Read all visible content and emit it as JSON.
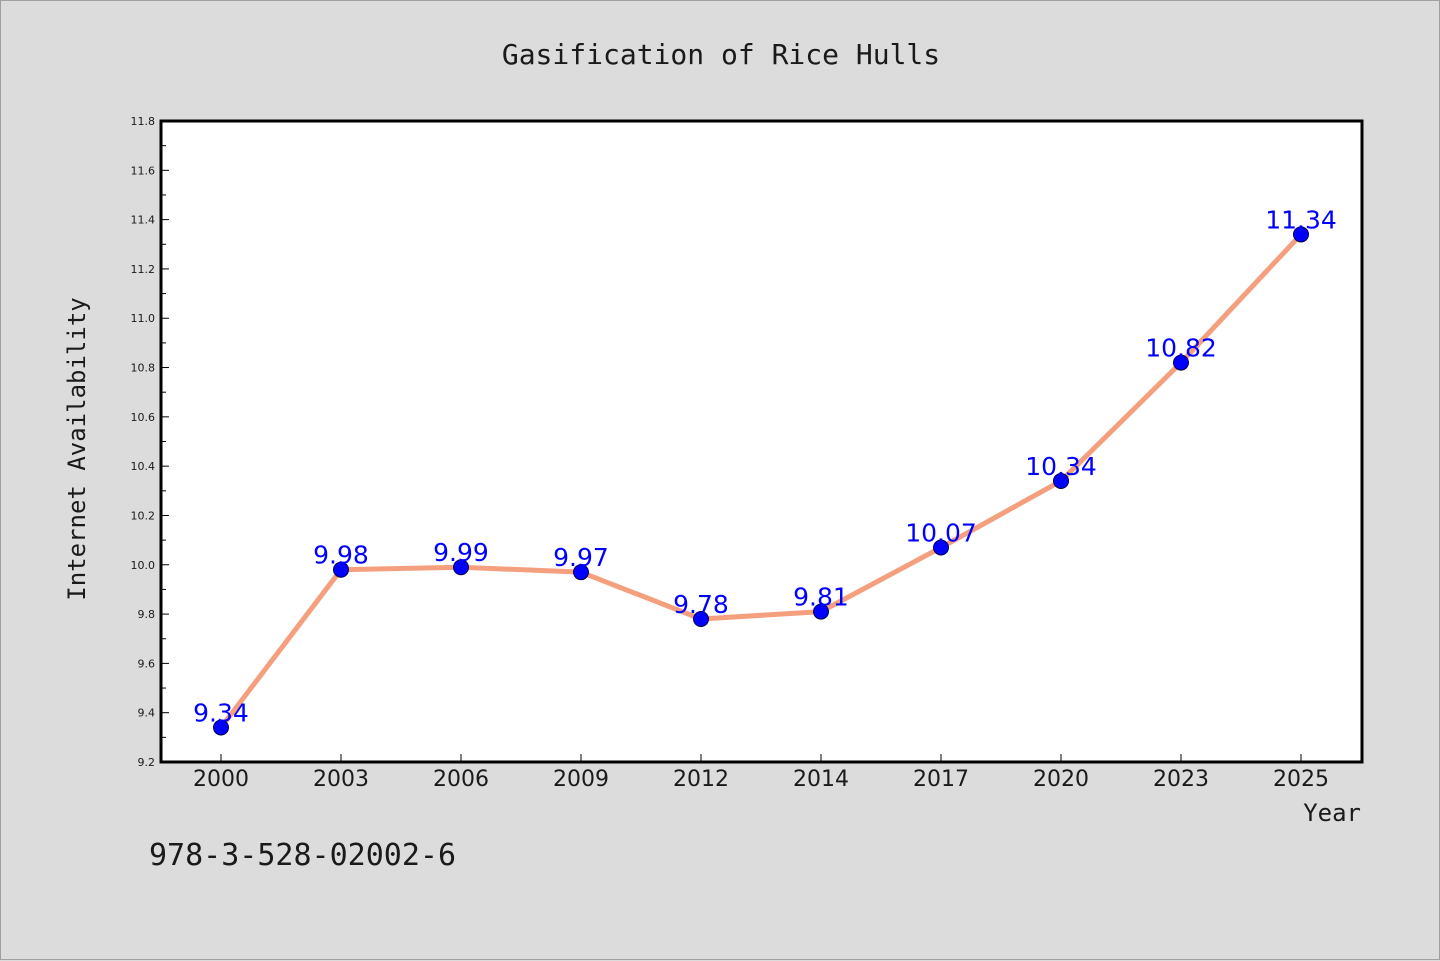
{
  "chart_data": {
    "type": "line",
    "title": "Gasification of Rice Hulls",
    "xlabel": "Year",
    "ylabel": "Internet Availability",
    "categories": [
      "2000",
      "2003",
      "2006",
      "2009",
      "2012",
      "2014",
      "2017",
      "2020",
      "2023",
      "2025"
    ],
    "series": [
      {
        "values": [
          9.34,
          9.98,
          9.99,
          9.97,
          9.78,
          9.81,
          10.07,
          10.34,
          10.82,
          11.34
        ],
        "labels": [
          "9.34",
          "9.98",
          "9.99",
          "9.97",
          "9.78",
          "9.81",
          "10.07",
          "10.34",
          "10.82",
          "11.34"
        ]
      }
    ],
    "ylim": [
      9.2,
      11.8
    ],
    "yticks": [
      "9.2",
      "9.4",
      "9.6",
      "9.8",
      "10.0",
      "10.2",
      "10.4",
      "10.6",
      "10.8",
      "11.0",
      "11.2",
      "11.4",
      "11.6",
      "11.8"
    ],
    "grid": false,
    "legend": "none",
    "colors": {
      "line": "#f4a07e",
      "marker": "#0000ff",
      "data_label": "#0000ff",
      "background": "#dcdcdc",
      "plot_background": "#ffffff"
    }
  },
  "annotation": "978-3-528-02002-6"
}
